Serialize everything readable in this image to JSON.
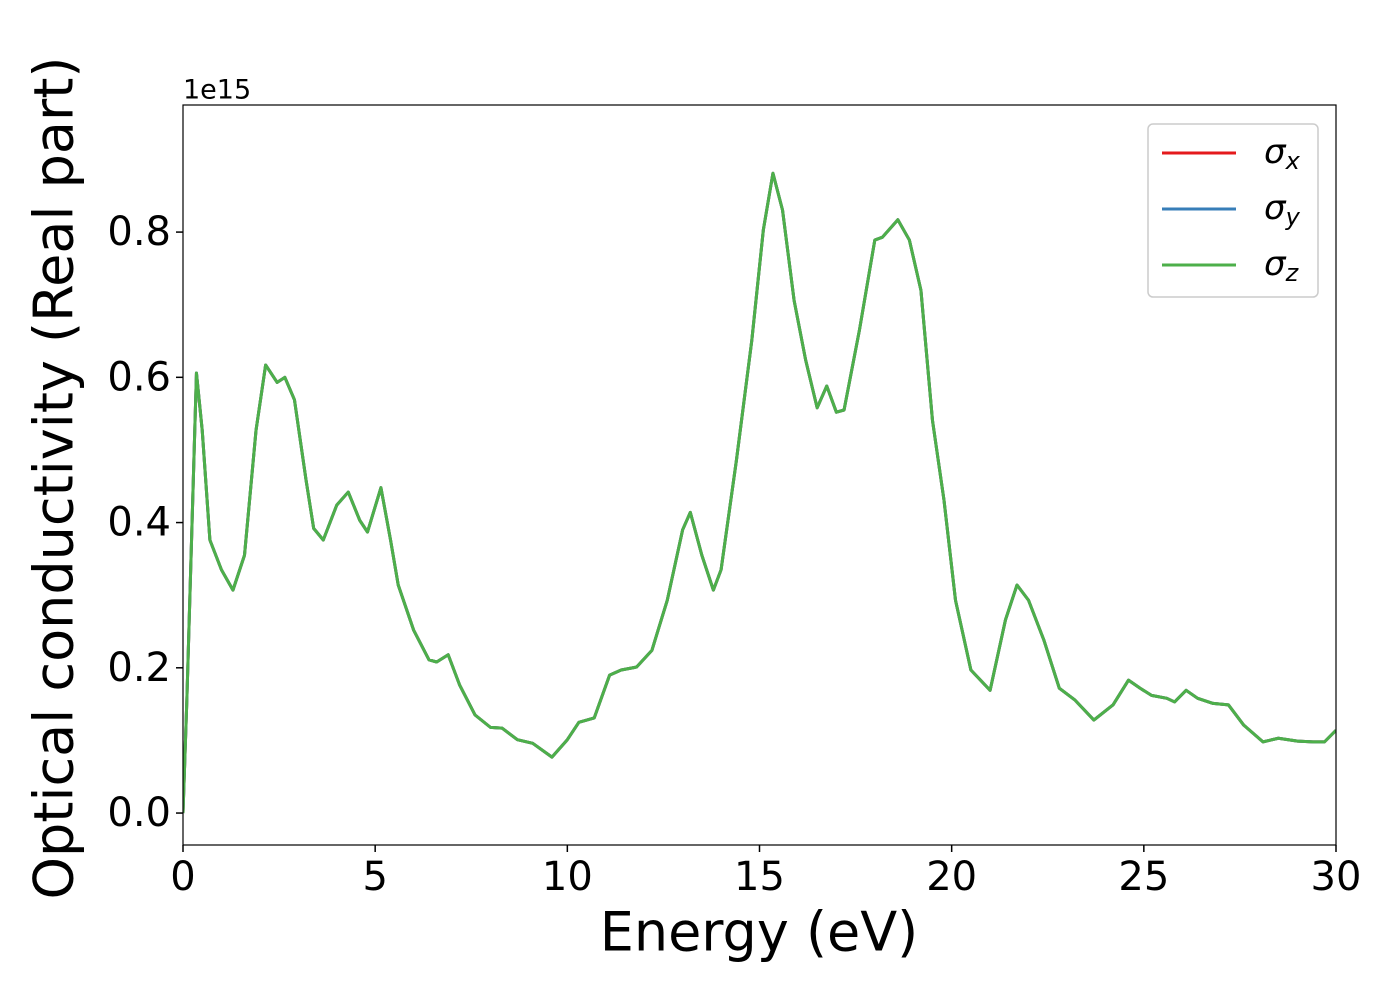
{
  "chart_data": {
    "type": "line",
    "xlabel": "Energy (eV)",
    "ylabel": "Optical conductivity (Real part)",
    "y_offset_label": "1e15",
    "x": [
      0,
      0.1,
      0.35,
      0.5,
      0.7,
      1.0,
      1.3,
      1.6,
      1.9,
      2.15,
      2.45,
      2.65,
      2.9,
      3.2,
      3.4,
      3.65,
      4.0,
      4.3,
      4.6,
      4.8,
      5.15,
      5.4,
      5.6,
      6.0,
      6.4,
      6.6,
      6.9,
      7.2,
      7.6,
      8.0,
      8.3,
      8.7,
      9.1,
      9.6,
      10.0,
      10.3,
      10.7,
      11.1,
      11.4,
      11.8,
      12.2,
      12.6,
      13.0,
      13.2,
      13.5,
      13.8,
      14.0,
      14.4,
      14.8,
      15.1,
      15.35,
      15.6,
      15.9,
      16.2,
      16.5,
      16.75,
      17.0,
      17.2,
      17.6,
      18.0,
      18.2,
      18.6,
      18.9,
      19.2,
      19.5,
      19.8,
      20.1,
      20.5,
      21.0,
      21.4,
      21.7,
      22.0,
      22.4,
      22.8,
      23.2,
      23.7,
      24.2,
      24.6,
      24.9,
      25.2,
      25.6,
      25.8,
      26.1,
      26.4,
      26.8,
      27.2,
      27.6,
      28.1,
      28.5,
      29.0,
      29.4,
      29.7,
      30.0
    ],
    "series": [
      {
        "name": "σx",
        "color": "#e41a1c",
        "values": [
          0.0,
          0.155,
          0.606,
          0.527,
          0.376,
          0.335,
          0.307,
          0.355,
          0.527,
          0.617,
          0.593,
          0.6,
          0.569,
          0.459,
          0.392,
          0.376,
          0.424,
          0.442,
          0.403,
          0.387,
          0.448,
          0.376,
          0.314,
          0.252,
          0.211,
          0.208,
          0.218,
          0.176,
          0.135,
          0.118,
          0.117,
          0.101,
          0.096,
          0.077,
          0.101,
          0.125,
          0.131,
          0.19,
          0.197,
          0.201,
          0.224,
          0.293,
          0.39,
          0.414,
          0.355,
          0.307,
          0.335,
          0.486,
          0.651,
          0.803,
          0.881,
          0.83,
          0.706,
          0.624,
          0.558,
          0.588,
          0.552,
          0.555,
          0.665,
          0.789,
          0.793,
          0.817,
          0.789,
          0.72,
          0.541,
          0.431,
          0.293,
          0.197,
          0.169,
          0.266,
          0.314,
          0.293,
          0.238,
          0.172,
          0.156,
          0.128,
          0.149,
          0.183,
          0.172,
          0.162,
          0.158,
          0.153,
          0.169,
          0.158,
          0.151,
          0.149,
          0.121,
          0.098,
          0.103,
          0.099,
          0.098,
          0.098,
          0.114
        ]
      },
      {
        "name": "σy",
        "color": "#377eb8",
        "values": [
          0.0,
          0.155,
          0.606,
          0.527,
          0.376,
          0.335,
          0.307,
          0.355,
          0.527,
          0.617,
          0.593,
          0.6,
          0.569,
          0.459,
          0.392,
          0.376,
          0.424,
          0.442,
          0.403,
          0.387,
          0.448,
          0.376,
          0.314,
          0.252,
          0.211,
          0.208,
          0.218,
          0.176,
          0.135,
          0.118,
          0.117,
          0.101,
          0.096,
          0.077,
          0.101,
          0.125,
          0.131,
          0.19,
          0.197,
          0.201,
          0.224,
          0.293,
          0.39,
          0.414,
          0.355,
          0.307,
          0.335,
          0.486,
          0.651,
          0.803,
          0.881,
          0.83,
          0.706,
          0.624,
          0.558,
          0.588,
          0.552,
          0.555,
          0.665,
          0.789,
          0.793,
          0.817,
          0.789,
          0.72,
          0.541,
          0.431,
          0.293,
          0.197,
          0.169,
          0.266,
          0.314,
          0.293,
          0.238,
          0.172,
          0.156,
          0.128,
          0.149,
          0.183,
          0.172,
          0.162,
          0.158,
          0.153,
          0.169,
          0.158,
          0.151,
          0.149,
          0.121,
          0.098,
          0.103,
          0.099,
          0.098,
          0.098,
          0.114
        ]
      },
      {
        "name": "σz",
        "color": "#4daf4a",
        "values": [
          0.0,
          0.155,
          0.606,
          0.527,
          0.376,
          0.335,
          0.307,
          0.355,
          0.527,
          0.617,
          0.593,
          0.6,
          0.569,
          0.459,
          0.392,
          0.376,
          0.424,
          0.442,
          0.403,
          0.387,
          0.448,
          0.376,
          0.314,
          0.252,
          0.211,
          0.208,
          0.218,
          0.176,
          0.135,
          0.118,
          0.117,
          0.101,
          0.096,
          0.077,
          0.101,
          0.125,
          0.131,
          0.19,
          0.197,
          0.201,
          0.224,
          0.293,
          0.39,
          0.414,
          0.355,
          0.307,
          0.335,
          0.486,
          0.651,
          0.803,
          0.881,
          0.83,
          0.706,
          0.624,
          0.558,
          0.588,
          0.552,
          0.555,
          0.665,
          0.789,
          0.793,
          0.817,
          0.789,
          0.72,
          0.541,
          0.431,
          0.293,
          0.197,
          0.169,
          0.266,
          0.314,
          0.293,
          0.238,
          0.172,
          0.156,
          0.128,
          0.149,
          0.183,
          0.172,
          0.162,
          0.158,
          0.153,
          0.169,
          0.158,
          0.151,
          0.149,
          0.121,
          0.098,
          0.103,
          0.099,
          0.098,
          0.098,
          0.114
        ]
      }
    ],
    "xlim": [
      0,
      30
    ],
    "xticks": [
      0,
      5,
      10,
      15,
      20,
      25,
      30
    ],
    "ylim": [
      -0.044,
      0.975
    ],
    "yticks": [
      {
        "value": 0,
        "label": "0.0"
      },
      0.2,
      0.4,
      0.6,
      0.8
    ],
    "grid": false,
    "legend": "upper right"
  }
}
